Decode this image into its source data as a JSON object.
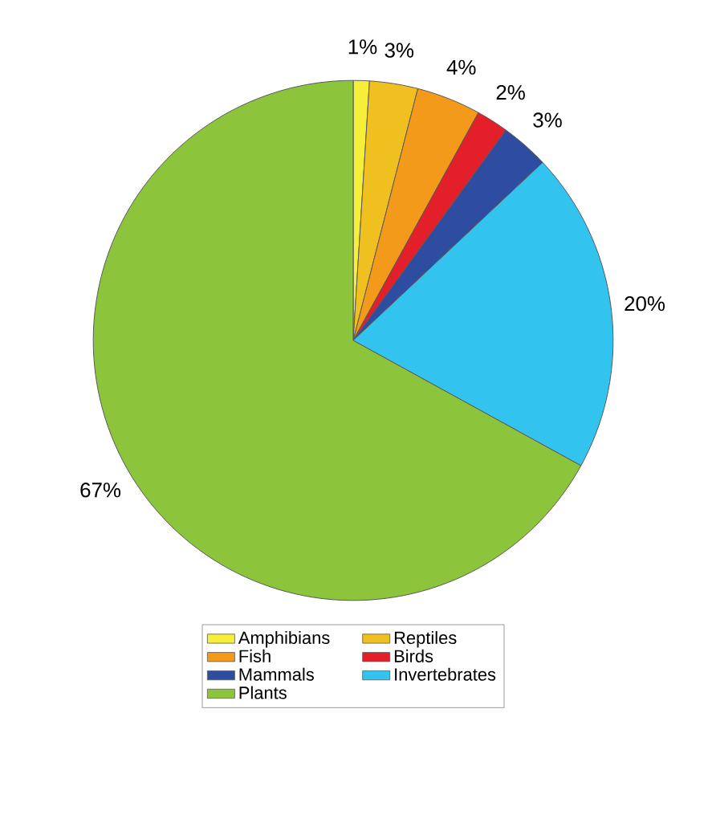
{
  "chart_data": {
    "type": "pie",
    "categories": [
      "Amphibians",
      "Reptiles",
      "Fish",
      "Birds",
      "Mammals",
      "Invertebrates",
      "Plants"
    ],
    "values": [
      1,
      3,
      4,
      2,
      3,
      20,
      67
    ],
    "value_labels": [
      "1%",
      "3%",
      "4%",
      "2%",
      "3%",
      "20%",
      "67%"
    ],
    "colors": [
      "#f5ef3a",
      "#f0c020",
      "#f39a1a",
      "#e3202a",
      "#2e4da0",
      "#33c3ef",
      "#8cc43c"
    ],
    "legend": "bottom"
  }
}
